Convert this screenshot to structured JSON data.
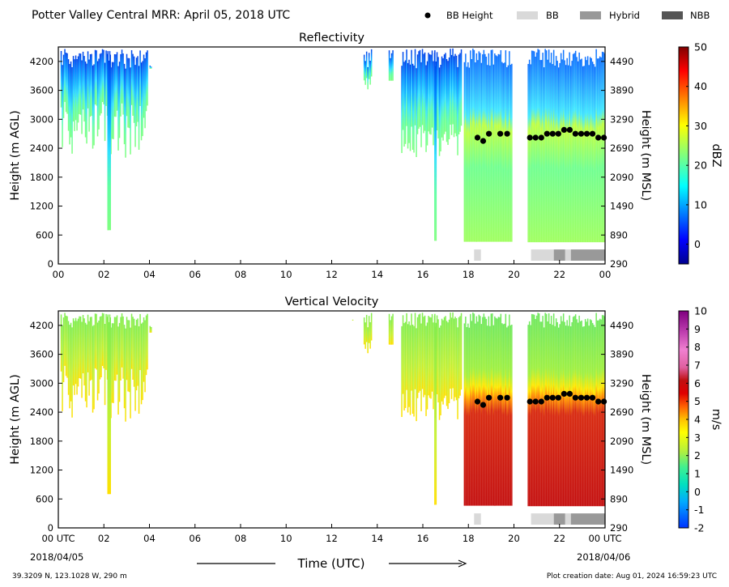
{
  "header": {
    "title": "Potter Valley Central MRR:  April 05, 2018 UTC",
    "legend": [
      {
        "label": "BB Height",
        "kind": "dot",
        "color": "#000000"
      },
      {
        "label": "BB",
        "kind": "box",
        "color": "#d9d9d9"
      },
      {
        "label": "Hybrid",
        "kind": "box",
        "color": "#999999"
      },
      {
        "label": "NBB",
        "kind": "box",
        "color": "#555555"
      }
    ]
  },
  "footer": {
    "location": "39.3209 N, 123.1028 W, 290 m",
    "created": "Plot creation date: Aug 01, 2024 16:59:23 UTC",
    "xlabel": "Time (UTC)",
    "date_start": "2018/04/05",
    "date_end": "2018/04/06"
  },
  "chart_data": [
    {
      "type": "heatmap",
      "title": "Reflectivity",
      "ylabel": "Height (m AGL)",
      "ylabel_right": "Height (m MSL)",
      "xlim": [
        0,
        24
      ],
      "ylim": [
        0,
        4500
      ],
      "x_ticks": [
        "00",
        "02",
        "04",
        "06",
        "08",
        "10",
        "12",
        "14",
        "16",
        "18",
        "20",
        "22",
        "00"
      ],
      "y_ticks": [
        0,
        600,
        1200,
        1800,
        2400,
        3000,
        3600,
        4200
      ],
      "y_ticks_right": [
        290,
        890,
        1490,
        2090,
        2690,
        3290,
        3890,
        4490
      ],
      "colorbar": {
        "label": "dBZ",
        "min": -5,
        "max": 50,
        "ticks": [
          0,
          10,
          20,
          30,
          40,
          50
        ],
        "colormap": "jet"
      },
      "bb_height": {
        "x": [
          18.4,
          18.65,
          18.9,
          19.4,
          19.7,
          20.7,
          20.95,
          21.2,
          21.45,
          21.7,
          21.95,
          22.2,
          22.45,
          22.7,
          22.95,
          23.2,
          23.45,
          23.7,
          23.95
        ],
        "y": [
          2620,
          2550,
          2700,
          2700,
          2700,
          2620,
          2620,
          2620,
          2700,
          2700,
          2700,
          2780,
          2780,
          2700,
          2700,
          2700,
          2700,
          2620,
          2620
        ]
      },
      "bb_type": [
        {
          "start": 18.25,
          "end": 18.55,
          "type": "BB"
        },
        {
          "start": 20.75,
          "end": 21.75,
          "type": "BB"
        },
        {
          "start": 21.75,
          "end": 22.25,
          "type": "Hybrid"
        },
        {
          "start": 22.25,
          "end": 22.5,
          "type": "BB"
        },
        {
          "start": 22.5,
          "end": 24.0,
          "type": "Hybrid"
        }
      ]
    },
    {
      "type": "heatmap",
      "title": "Vertical Velocity",
      "ylabel": "Height (m AGL)",
      "ylabel_right": "Height (m MSL)",
      "xlim": [
        0,
        24
      ],
      "ylim": [
        0,
        4500
      ],
      "x_ticks": [
        "00 UTC",
        "02",
        "04",
        "06",
        "08",
        "10",
        "12",
        "14",
        "16",
        "18",
        "20",
        "22",
        "00 UTC"
      ],
      "y_ticks": [
        0,
        600,
        1200,
        1800,
        2400,
        3000,
        3600,
        4200
      ],
      "y_ticks_right": [
        290,
        890,
        1490,
        2090,
        2690,
        3290,
        3890,
        4490
      ],
      "colorbar": {
        "label": "m/s",
        "min": -2,
        "max": 10,
        "ticks": [
          -2,
          -1,
          0,
          1,
          2,
          3,
          4,
          5,
          6,
          7,
          8,
          9,
          10
        ]
      },
      "bb_height": {
        "x": [
          18.4,
          18.65,
          18.9,
          19.4,
          19.7,
          20.7,
          20.95,
          21.2,
          21.45,
          21.7,
          21.95,
          22.2,
          22.45,
          22.7,
          22.95,
          23.2,
          23.45,
          23.7,
          23.95
        ],
        "y": [
          2620,
          2550,
          2700,
          2700,
          2700,
          2620,
          2620,
          2620,
          2700,
          2700,
          2700,
          2780,
          2780,
          2700,
          2700,
          2700,
          2700,
          2620,
          2620
        ]
      },
      "bb_type": [
        {
          "start": 18.25,
          "end": 18.55,
          "type": "BB"
        },
        {
          "start": 20.75,
          "end": 21.75,
          "type": "BB"
        },
        {
          "start": 21.75,
          "end": 22.25,
          "type": "Hybrid"
        },
        {
          "start": 22.25,
          "end": 22.5,
          "type": "BB"
        },
        {
          "start": 22.5,
          "end": 24.0,
          "type": "Hybrid"
        }
      ]
    }
  ]
}
